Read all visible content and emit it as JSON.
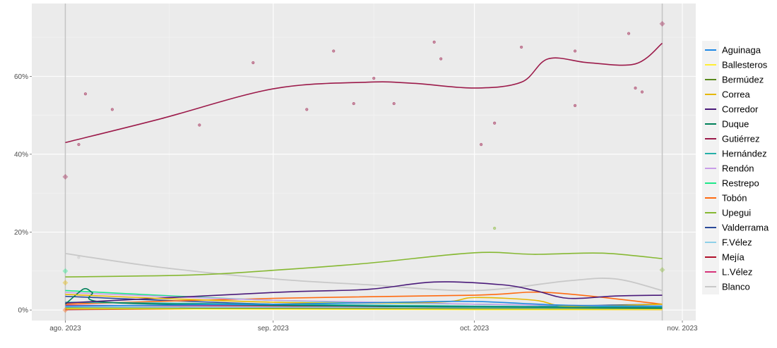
{
  "chart_data": {
    "type": "line",
    "title": "",
    "xlabel": "",
    "ylabel": "",
    "xlim": [
      "2023-07-27",
      "2023-11-03"
    ],
    "ylim": [
      -2.7,
      78.7
    ],
    "grid": true,
    "legend_placement": "right",
    "x_ticks": [
      {
        "date": "2023-08-01",
        "label": "ago. 2023"
      },
      {
        "date": "2023-09-01",
        "label": "sep. 2023"
      },
      {
        "date": "2023-10-01",
        "label": "oct. 2023"
      },
      {
        "date": "2023-11-01",
        "label": "nov. 2023"
      }
    ],
    "y_ticks": [
      {
        "value": 0,
        "label": "0%"
      },
      {
        "value": 20,
        "label": "20%"
      },
      {
        "value": 40,
        "label": "40%"
      },
      {
        "value": 60,
        "label": "60%"
      }
    ],
    "reference_dates": [
      "2023-08-01",
      "2023-10-29"
    ],
    "series": [
      {
        "name": "Aguinaga",
        "color": "#1e88e5",
        "x": [
          "2023-08-01",
          "2023-09-01",
          "2023-09-20",
          "2023-10-01",
          "2023-10-15",
          "2023-10-29"
        ],
        "y": [
          1.0,
          1.5,
          2.0,
          2.2,
          1.2,
          1.0
        ]
      },
      {
        "name": "Ballesteros",
        "color": "#ffee33",
        "x": [
          "2023-08-01",
          "2023-09-01",
          "2023-10-01",
          "2023-10-29"
        ],
        "y": [
          0.3,
          0.2,
          0.1,
          0.1
        ]
      },
      {
        "name": "Bermúdez",
        "color": "#5a8a1e",
        "x": [
          "2023-08-01",
          "2023-09-01",
          "2023-10-01",
          "2023-10-29"
        ],
        "y": [
          0.5,
          0.4,
          0.3,
          0.2
        ]
      },
      {
        "name": "Correa",
        "color": "#e6b800",
        "x": [
          "2023-08-01",
          "2023-09-01",
          "2023-09-25",
          "2023-10-01",
          "2023-10-10",
          "2023-10-15",
          "2023-10-29"
        ],
        "y": [
          4.0,
          2.0,
          2.0,
          3.2,
          2.5,
          1.0,
          1.5
        ]
      },
      {
        "name": "Corredor",
        "color": "#4a1a7a",
        "x": [
          "2023-08-01",
          "2023-09-01",
          "2023-09-15",
          "2023-09-25",
          "2023-10-05",
          "2023-10-10",
          "2023-10-15",
          "2023-10-22",
          "2023-10-29"
        ],
        "y": [
          1.8,
          4.5,
          5.3,
          7.2,
          6.5,
          5.0,
          3.0,
          3.6,
          3.8
        ]
      },
      {
        "name": "Duque",
        "color": "#00805a",
        "x": [
          "2023-08-01",
          "2023-08-03",
          "2023-08-04",
          "2023-08-05",
          "2023-08-07",
          "2023-09-01",
          "2023-10-01",
          "2023-10-29"
        ],
        "y": [
          1.5,
          4.5,
          5.5,
          4.5,
          2.0,
          1.2,
          0.8,
          0.5
        ]
      },
      {
        "name": "Gutiérrez",
        "color": "#9c1a4a",
        "x": [
          "2023-08-01",
          "2023-08-15",
          "2023-09-01",
          "2023-09-15",
          "2023-09-22",
          "2023-10-01",
          "2023-10-08",
          "2023-10-12",
          "2023-10-18",
          "2023-10-25",
          "2023-10-29"
        ],
        "y": [
          43.0,
          49.0,
          56.8,
          58.5,
          58.2,
          57.0,
          58.5,
          64.5,
          63.5,
          63.2,
          68.5
        ]
      },
      {
        "name": "Hernández",
        "color": "#26b0a8",
        "x": [
          "2023-08-01",
          "2023-09-01",
          "2023-10-01",
          "2023-10-29"
        ],
        "y": [
          2.0,
          1.5,
          1.0,
          0.8
        ]
      },
      {
        "name": "Rendón",
        "color": "#c99de8",
        "x": [
          "2023-08-01",
          "2023-09-01",
          "2023-10-01",
          "2023-10-29"
        ],
        "y": [
          4.5,
          2.5,
          1.5,
          1.0
        ]
      },
      {
        "name": "Restrepo",
        "color": "#1ee88a",
        "x": [
          "2023-08-01",
          "2023-09-01",
          "2023-10-01",
          "2023-10-29"
        ],
        "y": [
          5.0,
          2.5,
          1.5,
          1.0
        ]
      },
      {
        "name": "Tobón",
        "color": "#ff6a10",
        "x": [
          "2023-08-01",
          "2023-09-01",
          "2023-10-01",
          "2023-10-12",
          "2023-10-29"
        ],
        "y": [
          1.5,
          3.0,
          3.8,
          4.5,
          1.5
        ]
      },
      {
        "name": "Upegui",
        "color": "#86b832",
        "x": [
          "2023-08-01",
          "2023-08-20",
          "2023-09-01",
          "2023-09-15",
          "2023-10-01",
          "2023-10-10",
          "2023-10-20",
          "2023-10-29"
        ],
        "y": [
          8.5,
          9.0,
          10.2,
          12.0,
          14.7,
          14.3,
          14.6,
          13.2
        ]
      },
      {
        "name": "Valderrama",
        "color": "#2a4a9a",
        "x": [
          "2023-08-01",
          "2023-09-01",
          "2023-10-01",
          "2023-10-29"
        ],
        "y": [
          3.5,
          1.5,
          0.8,
          1.5
        ]
      },
      {
        "name": "F.Vélez",
        "color": "#8ed0e8",
        "x": [
          "2023-08-01",
          "2023-09-01",
          "2023-10-01",
          "2023-10-29"
        ],
        "y": [
          0.8,
          0.7,
          0.5,
          0.4
        ]
      },
      {
        "name": "Mejía",
        "color": "#b0102a",
        "x": [
          "2023-08-01",
          "2023-09-01",
          "2023-10-01",
          "2023-10-29"
        ],
        "y": [
          0.1,
          0.3,
          0.2,
          0.1
        ]
      },
      {
        "name": "L.Vélez",
        "color": "#d6337a",
        "x": [
          "2023-08-01",
          "2023-09-01",
          "2023-10-01",
          "2023-10-29"
        ],
        "y": [
          1.2,
          1.0,
          0.8,
          0.6
        ]
      },
      {
        "name": "Blanco",
        "color": "#c8c8c8",
        "x": [
          "2023-08-01",
          "2023-08-15",
          "2023-09-01",
          "2023-09-15",
          "2023-10-01",
          "2023-10-15",
          "2023-10-22",
          "2023-10-29"
        ],
        "y": [
          14.5,
          11.0,
          8.0,
          6.5,
          5.0,
          7.5,
          8.0,
          5.0
        ]
      }
    ],
    "poll_points": [
      {
        "series": "Gutiérrez",
        "x": "2023-08-03",
        "y": 42.5
      },
      {
        "series": "Gutiérrez",
        "x": "2023-08-04",
        "y": 55.5
      },
      {
        "series": "Gutiérrez",
        "x": "2023-08-08",
        "y": 51.5
      },
      {
        "series": "Gutiérrez",
        "x": "2023-08-21",
        "y": 47.5
      },
      {
        "series": "Gutiérrez",
        "x": "2023-08-29",
        "y": 63.5
      },
      {
        "series": "Gutiérrez",
        "x": "2023-09-06",
        "y": 51.5
      },
      {
        "series": "Gutiérrez",
        "x": "2023-09-10",
        "y": 66.5
      },
      {
        "series": "Gutiérrez",
        "x": "2023-09-13",
        "y": 53.0
      },
      {
        "series": "Gutiérrez",
        "x": "2023-09-16",
        "y": 59.5
      },
      {
        "series": "Gutiérrez",
        "x": "2023-09-19",
        "y": 53.0
      },
      {
        "series": "Gutiérrez",
        "x": "2023-09-25",
        "y": 68.8
      },
      {
        "series": "Gutiérrez",
        "x": "2023-09-26",
        "y": 64.5
      },
      {
        "series": "Gutiérrez",
        "x": "2023-10-02",
        "y": 42.5
      },
      {
        "series": "Gutiérrez",
        "x": "2023-10-04",
        "y": 48.0
      },
      {
        "series": "Gutiérrez",
        "x": "2023-10-08",
        "y": 67.5
      },
      {
        "series": "Gutiérrez",
        "x": "2023-10-16",
        "y": 66.5
      },
      {
        "series": "Gutiérrez",
        "x": "2023-10-16",
        "y": 52.5
      },
      {
        "series": "Gutiérrez",
        "x": "2023-10-24",
        "y": 71.0
      },
      {
        "series": "Gutiérrez",
        "x": "2023-10-25",
        "y": 57.0
      },
      {
        "series": "Gutiérrez",
        "x": "2023-10-26",
        "y": 56.0
      },
      {
        "series": "Blanco",
        "x": "2023-08-03",
        "y": 13.5
      },
      {
        "series": "Upegui",
        "x": "2023-10-04",
        "y": 21.0
      }
    ],
    "results": [
      {
        "series": "Gutiérrez",
        "x": "2023-08-01",
        "y": 34.2
      },
      {
        "series": "Gutiérrez",
        "x": "2023-10-29",
        "y": 73.5
      },
      {
        "series": "Upegui",
        "x": "2023-10-29",
        "y": 10.3
      },
      {
        "series": "Restrepo",
        "x": "2023-08-01",
        "y": 10.0
      },
      {
        "series": "Correa",
        "x": "2023-08-01",
        "y": 7.0
      },
      {
        "series": "Tobón",
        "x": "2023-08-01",
        "y": 0.0
      }
    ]
  }
}
